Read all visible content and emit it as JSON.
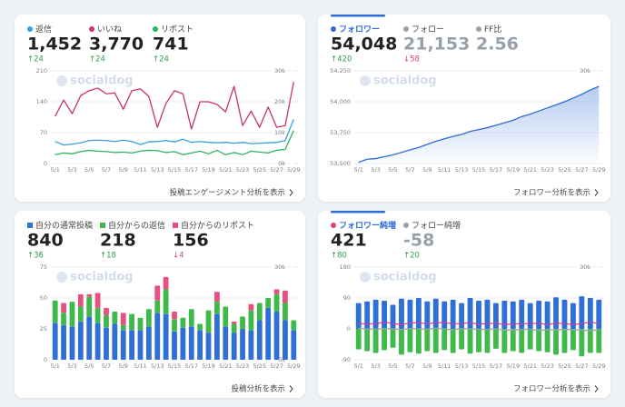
{
  "cards": [
    {
      "stats": [
        {
          "label": "返信",
          "value": "1,452",
          "change": "↑24",
          "color": "#3a9fe0"
        },
        {
          "label": "いいね",
          "value": "3,770",
          "change": "↑24",
          "color": "#c8336b"
        },
        {
          "label": "リポスト",
          "value": "741",
          "change": "↑24",
          "color": "#2bb55b"
        }
      ],
      "watermark": "socialdog",
      "link": "投稿エンゲージメント分析を表示",
      "chart": {
        "type": "line",
        "categories": [
          "5/1",
          null,
          "5/3",
          null,
          "5/5",
          null,
          "5/7",
          null,
          "5/9",
          null,
          "5/11",
          null,
          "5/13",
          null,
          "5/15",
          null,
          "5/17",
          null,
          "5/19",
          null,
          "5/21",
          null,
          "5/23",
          null,
          "5/25",
          null,
          "5/27",
          null,
          "5/29"
        ],
        "series": [
          {
            "name": "返信",
            "color": "#3a9fe0",
            "values": [
              50,
              42,
              44,
              47,
              52,
              53,
              52,
              50,
              53,
              50,
              43,
              49,
              50,
              52,
              49,
              55,
              48,
              50,
              48,
              47,
              48,
              46,
              48,
              45,
              46,
              47,
              48,
              52,
              100
            ]
          },
          {
            "name": "いいね",
            "color": "#c8336b",
            "values": [
              107,
              144,
              113,
              154,
              165,
              171,
              158,
              160,
              123,
              165,
              169,
              152,
              82,
              136,
              165,
              158,
              78,
              140,
              140,
              134,
              117,
              175,
              86,
              119,
              82,
              128,
              82,
              86,
              185
            ]
          },
          {
            "name": "リポスト",
            "color": "#2bb55b",
            "values": [
              20,
              24,
              22,
              27,
              30,
              28,
              27,
              25,
              26,
              24,
              28,
              30,
              29,
              25,
              27,
              20,
              24,
              28,
              22,
              30,
              20,
              25,
              20,
              28,
              26,
              24,
              30,
              32,
              75
            ]
          }
        ],
        "ylim": [
          0,
          210
        ],
        "yticks": [
          0,
          70,
          140,
          210
        ],
        "y2lim": [
          0,
          30000
        ],
        "y2ticks": [
          {
            "value": 0,
            "label": "0k"
          },
          {
            "value": 10000,
            "label": "10k"
          },
          {
            "value": 20000,
            "label": "20k"
          },
          {
            "value": 30000,
            "label": "30k"
          }
        ],
        "grid": true
      }
    },
    {
      "stats": [
        {
          "label": "フォロワー",
          "value": "54,048",
          "change": "↑420",
          "color": "#2d6bd6",
          "label_color": "#2d6bd6"
        },
        {
          "label": "フォロー",
          "value": "21,153",
          "change": "↓58",
          "color": "#9aa0a8",
          "value_color": "#9aa0a8"
        },
        {
          "label": "FF比",
          "value": "2.56",
          "color": "#9aa0a8",
          "value_color": "#9aa0a8"
        }
      ],
      "watermark": "socialdog",
      "link": "フォロワー分析を表示",
      "chart": {
        "type": "area",
        "categories": [
          "5/1",
          null,
          "5/3",
          null,
          "5/5",
          null,
          "5/7",
          null,
          "5/9",
          null,
          "5/11",
          null,
          "5/13",
          null,
          "5/15",
          null,
          "5/17",
          null,
          "5/19",
          null,
          "5/21",
          null,
          "5/23",
          null,
          "5/25",
          null,
          "5/27",
          null,
          "5/29"
        ],
        "series": [
          {
            "name": "フォロワー",
            "color": "#2d6bd6",
            "values": [
              53510,
              53535,
              53540,
              53555,
              53570,
              53590,
              53610,
              53630,
              53655,
              53680,
              53700,
              53720,
              53735,
              53760,
              53775,
              53790,
              53810,
              53830,
              53850,
              53880,
              53900,
              53925,
              53950,
              53975,
              54000,
              54030,
              54060,
              54095,
              54125
            ]
          }
        ],
        "ylim": [
          53500,
          54250
        ],
        "yticks": [
          {
            "value": 53500,
            "label": "53,500"
          },
          {
            "value": 53750,
            "label": "53,750"
          },
          {
            "value": 54000,
            "label": "54,000"
          },
          {
            "value": 54250,
            "label": "54,250"
          }
        ],
        "y2lim": [
          0,
          30000
        ],
        "y2ticks": [
          {
            "value": 30000,
            "label": "30k"
          }
        ],
        "grid": true
      }
    },
    {
      "stats": [
        {
          "label": "自分の通常投稿",
          "value": "840",
          "change": "↑36",
          "color": "#2f6fd6"
        },
        {
          "label": "自分からの返信",
          "value": "218",
          "change": "↑18",
          "color": "#3fba4a"
        },
        {
          "label": "自分からのリポスト",
          "value": "156",
          "change": "↓4",
          "color": "#e8507f"
        }
      ],
      "marker": "square",
      "watermark": "socialdog",
      "link": "投稿分析を表示",
      "chart": {
        "type": "stacked_bar",
        "categories": [
          "5/1",
          null,
          "5/3",
          null,
          "5/5",
          null,
          "5/7",
          null,
          "5/9",
          null,
          "5/11",
          null,
          "5/13",
          null,
          "5/15",
          null,
          "5/17",
          null,
          "5/19",
          null,
          "5/21",
          null,
          "5/23",
          null,
          "5/25",
          null,
          "5/27",
          null,
          "5/29"
        ],
        "series": [
          {
            "name": "自分の通常投稿",
            "color": "#2f6fd6",
            "values": [
              30,
              28,
              27,
              31,
              35,
              30,
              26,
              29,
              24,
              24,
              24,
              27,
              38,
              37,
              23,
              26,
              27,
              24,
              22,
              37,
              27,
              22,
              25,
              24,
              32,
              42,
              39,
              32,
              24
            ]
          },
          {
            "name": "自分からの返信",
            "color": "#3fba4a",
            "values": [
              18,
              10,
              20,
              12,
              16,
              12,
              10,
              10,
              4,
              13,
              10,
              14,
              10,
              20,
              10,
              8,
              14,
              5,
              18,
              10,
              16,
              7,
              10,
              16,
              14,
              8,
              14,
              14,
              8
            ]
          },
          {
            "name": "自分からのリポスト",
            "color": "#e8507f",
            "values": [
              0,
              8,
              0,
              10,
              2,
              12,
              6,
              0,
              10,
              0,
              0,
              0,
              12,
              10,
              6,
              0,
              0,
              0,
              0,
              8,
              0,
              2,
              0,
              5,
              0,
              0,
              4,
              10,
              0
            ]
          }
        ],
        "ylim": [
          0,
          75
        ],
        "yticks": [
          0,
          25,
          50,
          75
        ],
        "y2lim": [
          0,
          30000
        ],
        "y2ticks": [
          {
            "value": 0,
            "label": "0k"
          },
          {
            "value": 30000,
            "label": "30k"
          }
        ],
        "grid": true
      }
    },
    {
      "stats": [
        {
          "label": "フォロワー純増",
          "value": "421",
          "change": "↑80",
          "color": "#e0407f",
          "label_color": "#2d6bd6"
        },
        {
          "label": "フォロー純増",
          "value": "-58",
          "change": "↑20",
          "color": "#9aa0a8",
          "value_color": "#9aa0a8"
        }
      ],
      "watermark": "socialdog",
      "link": "フォロワー分析を表示",
      "chart": {
        "type": "mixed",
        "categories": [
          "5/1",
          null,
          "5/3",
          null,
          "5/5",
          null,
          "5/7",
          null,
          "5/9",
          null,
          "5/11",
          null,
          "5/13",
          null,
          "5/15",
          null,
          "5/17",
          null,
          "5/19",
          null,
          "5/21",
          null,
          "5/23",
          null,
          "5/25",
          null,
          "5/27",
          null,
          "5/29"
        ],
        "series": [
          {
            "kind": "bar",
            "color": "#2f6fd6",
            "values": [
              75,
              80,
              85,
              82,
              70,
              88,
              85,
              90,
              80,
              88,
              80,
              85,
              75,
              90,
              82,
              85,
              75,
              82,
              80,
              85,
              75,
              82,
              80,
              92,
              85,
              75,
              95,
              90,
              85
            ]
          },
          {
            "kind": "bar",
            "color": "#3fba4a",
            "values": [
              -60,
              -65,
              -70,
              -62,
              -55,
              -75,
              -68,
              -72,
              -65,
              -70,
              -62,
              -70,
              -60,
              -72,
              -68,
              -70,
              -58,
              -70,
              -65,
              -70,
              -60,
              -65,
              -68,
              -75,
              -70,
              -62,
              -80,
              -70,
              -70
            ]
          },
          {
            "kind": "line",
            "name": "フォロワー純増",
            "color": "#d63a8a",
            "values": [
              15,
              15,
              15,
              20,
              15,
              13,
              17,
              18,
              15,
              18,
              18,
              15,
              15,
              18,
              14,
              15,
              17,
              12,
              15,
              15,
              15,
              17,
              12,
              17,
              15,
              13,
              15,
              20,
              15
            ]
          },
          {
            "kind": "line",
            "name": "フォロー純増",
            "color": "#9aa0a8",
            "values": [
              2,
              0,
              -1,
              1,
              0,
              -2,
              1,
              0,
              -1,
              2,
              0,
              -3,
              1,
              0,
              -1,
              -2,
              0,
              -4,
              -3,
              -2,
              -1,
              -5,
              -2,
              -3,
              -1,
              -2,
              -4,
              -5,
              -3
            ]
          }
        ],
        "ylim": [
          -90,
          180
        ],
        "yticks": [
          -90,
          0,
          90,
          180
        ],
        "y2lim": [
          0,
          30000
        ],
        "y2ticks": [
          {
            "value": 30000,
            "label": "30k"
          }
        ],
        "grid": true
      }
    }
  ]
}
